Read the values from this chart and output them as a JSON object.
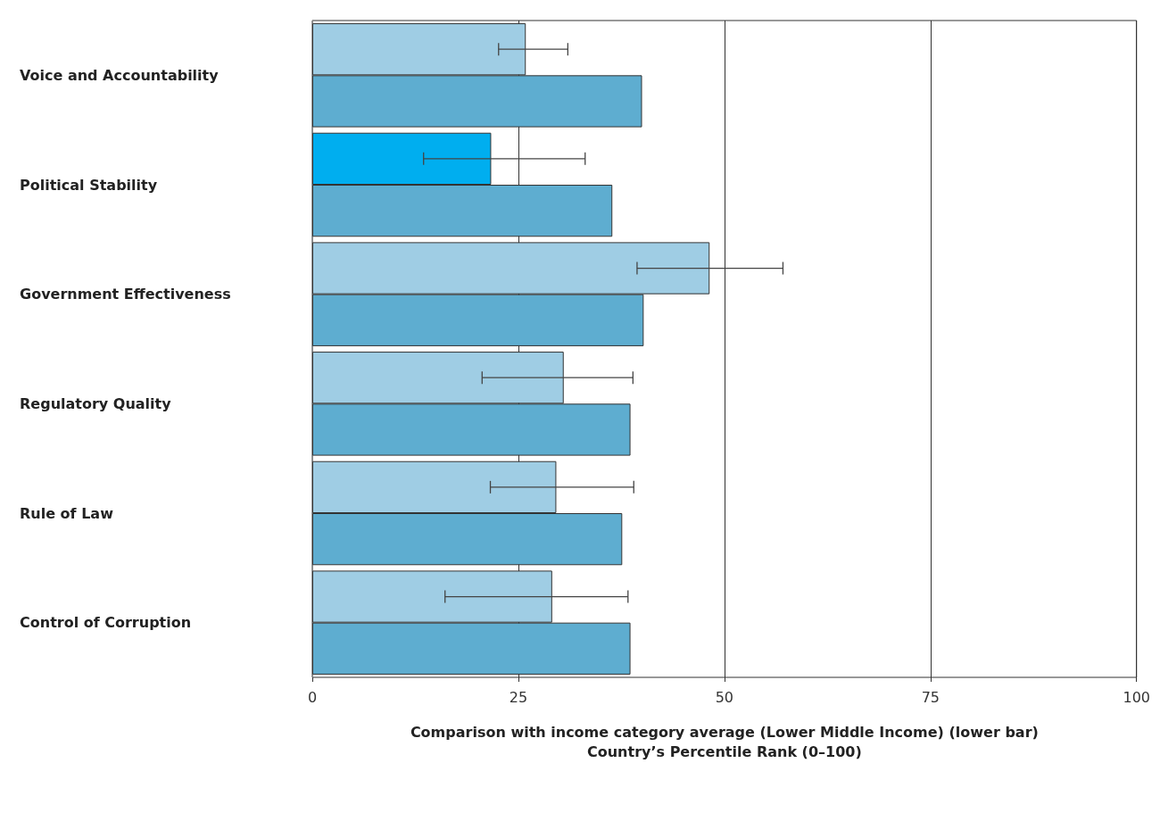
{
  "chart_data": {
    "type": "bar",
    "orientation": "horizontal",
    "xlabel": "Comparison with income category average (Lower Middle Income) (lower bar)\nCountry’s Percentile Rank (0–100)",
    "categories": [
      "Voice and Accountability",
      "Political Stability",
      "Government Effectiveness",
      "Regulatory Quality",
      "Rule of Law",
      "Control of Corruption"
    ],
    "series": [
      {
        "colors": [
          "#9fcde4",
          "#00aeef",
          "#9fcde4",
          "#9fcde4",
          "#9fcde4",
          "#9fcde4"
        ],
        "values": [
          25.9,
          21.7,
          48.2,
          30.5,
          29.6,
          29.1
        ],
        "errors": [
          [
            22.6,
            31.0
          ],
          [
            13.5,
            33.1
          ],
          [
            39.4,
            57.1
          ],
          [
            20.6,
            38.9
          ],
          [
            21.6,
            39.0
          ],
          [
            16.1,
            38.3
          ]
        ]
      },
      {
        "color": "#5eadd0",
        "values": [
          40.0,
          36.4,
          40.2,
          38.6,
          37.6,
          38.6
        ]
      }
    ],
    "xlim": [
      0,
      100
    ],
    "xticks": [
      0,
      25,
      50,
      75,
      100
    ],
    "grid": "x"
  }
}
